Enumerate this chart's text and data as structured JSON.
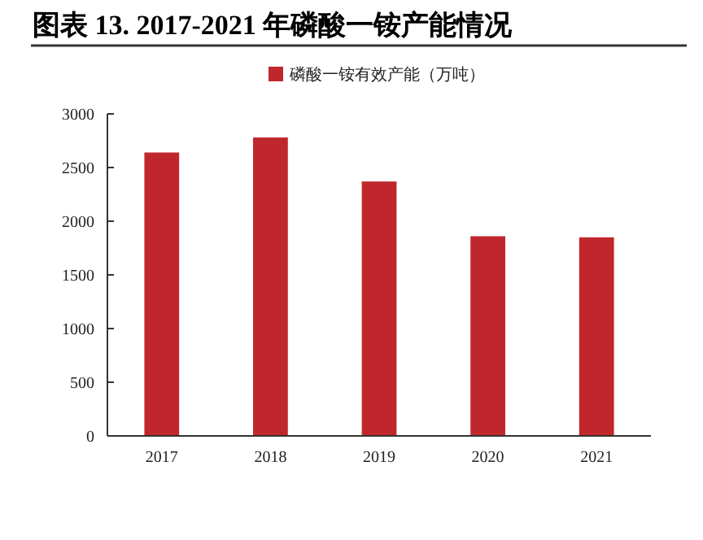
{
  "chart_data": {
    "type": "bar",
    "title": "图表 13. 2017-2021 年磷酸一铵产能情况",
    "categories": [
      "2017",
      "2018",
      "2019",
      "2020",
      "2021"
    ],
    "series": [
      {
        "name": "磷酸一铵有效产能（万吨）",
        "color": "#c0272d",
        "values": [
          2640,
          2780,
          2370,
          1860,
          1850
        ]
      }
    ],
    "ylim": [
      0,
      3000
    ],
    "yticks": [
      0,
      500,
      1000,
      1500,
      2000,
      2500,
      3000
    ],
    "grid": false,
    "legend": "top"
  }
}
